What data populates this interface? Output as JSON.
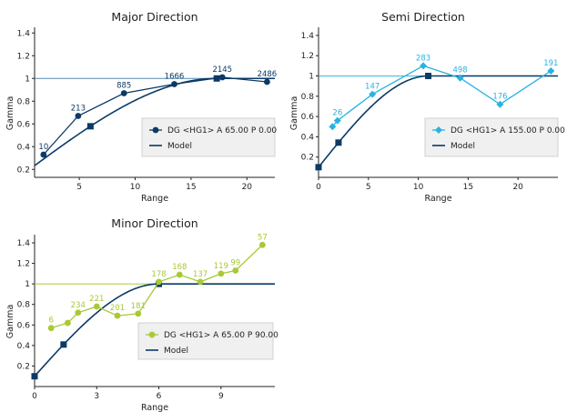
{
  "colors": {
    "model": "#0b3a66",
    "sill": "#3a78a8",
    "major": "#0b3a66",
    "semi": "#29b2e3",
    "minor": "#a8c936",
    "legend_bg": "#f0f0f0",
    "axis": "#222222"
  },
  "chart_data": [
    {
      "type": "line",
      "title": "Major Direction",
      "xlabel": "Range",
      "ylabel": "Gamma",
      "xlim": [
        1,
        22.5
      ],
      "ylim": [
        0.13,
        1.45
      ],
      "xticks": [
        5,
        10,
        15,
        20
      ],
      "yticks": [
        0.2,
        0.4,
        0.6,
        0.8,
        1,
        1.2,
        1.4
      ],
      "sill": 1,
      "marker": "circle",
      "experimental": {
        "x": [
          1.8,
          4.9,
          9,
          13.5,
          17.8,
          21.8
        ],
        "y": [
          0.33,
          0.67,
          0.87,
          0.95,
          1.01,
          0.97
        ],
        "labels": [
          "10",
          "213",
          "885",
          "1666",
          "2145",
          "2486"
        ]
      },
      "model": {
        "range": 17.3,
        "nugget": 0.16,
        "square_x": [
          6,
          17.3
        ]
      },
      "legend": {
        "experimental": "DG <HG1> A 65.00 P 0.00",
        "model": "Model"
      }
    },
    {
      "type": "line",
      "title": "Semi Direction",
      "xlabel": "Range",
      "ylabel": "Gamma",
      "xlim": [
        0,
        24
      ],
      "ylim": [
        0,
        1.48
      ],
      "xticks": [
        0,
        5,
        10,
        15,
        20
      ],
      "yticks": [
        0.2,
        0.4,
        0.6,
        0.8,
        1,
        1.2,
        1.4
      ],
      "sill": 1,
      "marker": "diamond",
      "experimental": {
        "x": [
          1.4,
          1.9,
          5.4,
          10.5,
          14.2,
          18.2,
          23.3
        ],
        "y": [
          0.5,
          0.56,
          0.82,
          1.1,
          0.98,
          0.72,
          1.05
        ],
        "labels": [
          "",
          "26",
          "147",
          "283",
          "498",
          "176",
          "191"
        ]
      },
      "model": {
        "range": 11,
        "nugget": 0.1,
        "square_x": [
          0,
          2,
          11
        ]
      },
      "legend": {
        "experimental": "DG <HG1> A 155.00 P 0.00",
        "model": "Model"
      }
    },
    {
      "type": "line",
      "title": "Minor Direction",
      "xlabel": "Range",
      "ylabel": "Gamma",
      "xlim": [
        0,
        11.6
      ],
      "ylim": [
        0,
        1.48
      ],
      "xticks": [
        0,
        3,
        6,
        9
      ],
      "yticks": [
        0.2,
        0.4,
        0.6,
        0.8,
        1,
        1.2,
        1.4
      ],
      "sill": 1,
      "marker": "circle",
      "experimental": {
        "x": [
          0.8,
          1.6,
          2.1,
          3,
          4,
          5,
          6,
          7,
          8,
          9,
          9.7,
          11
        ],
        "y": [
          0.57,
          0.62,
          0.72,
          0.78,
          0.69,
          0.71,
          1.02,
          1.09,
          1.02,
          1.1,
          1.13,
          1.38
        ],
        "labels": [
          "6",
          "",
          "234",
          "221",
          "201",
          "181",
          "178",
          "168",
          "137",
          "119",
          "99",
          "57"
        ]
      },
      "model": {
        "range": 6,
        "nugget": 0.1,
        "square_x": [
          0,
          1.4,
          6
        ]
      },
      "legend": {
        "experimental": "DG <HG1> A 65.00 P 90.00",
        "model": "Model"
      }
    }
  ]
}
